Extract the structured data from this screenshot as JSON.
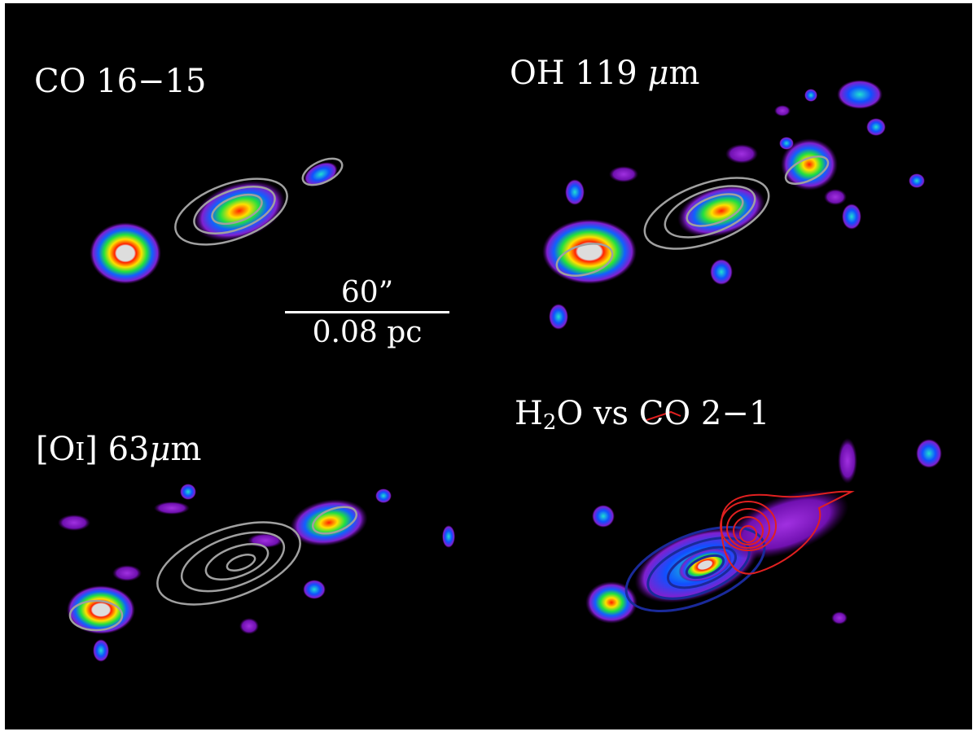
{
  "panels": [
    {
      "id": "co-16-15",
      "label_html": "CO 16&minus;15"
    },
    {
      "id": "oh-119",
      "label_html": "OH 119 <i>&mu;</i>m"
    },
    {
      "id": "oi-63",
      "label_html": "[O<span class=\"sc\">I</span>] 63<i>&mu;</i>m"
    },
    {
      "id": "h2o-vs-co",
      "label_html": "H<sub>2</sub>O vs CO 2&minus;1"
    }
  ],
  "scale_bar": {
    "angular": "60”",
    "physical": "0.08 pc"
  },
  "colors": {
    "background": "#000000",
    "contour_gray": "#a0a0a0",
    "contour_blue": "#1a2a9a",
    "contour_red": "#e02020"
  }
}
